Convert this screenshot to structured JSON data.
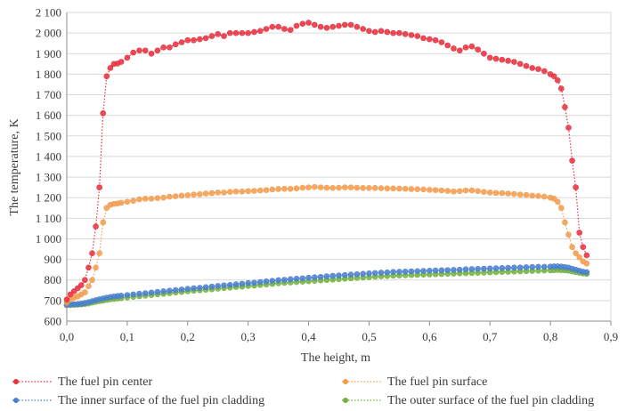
{
  "chart_data": {
    "type": "line",
    "xlabel": "The height, m",
    "ylabel": "The temperature, K",
    "xlim": [
      0,
      0.9
    ],
    "ylim": [
      600,
      2100
    ],
    "x_ticks": [
      "0,0",
      "0,1",
      "0,2",
      "0,3",
      "0,4",
      "0,5",
      "0,6",
      "0,7",
      "0,8",
      "0,9"
    ],
    "y_ticks": [
      "600",
      "700",
      "800",
      "900",
      "1 000",
      "1 100",
      "1 200",
      "1 300",
      "1 400",
      "1 500",
      "1 600",
      "1 700",
      "1 800",
      "1 900",
      "2 000",
      "2 100"
    ],
    "grid": "horizontal",
    "legend_position": "bottom",
    "series": [
      {
        "name": "The fuel pin center",
        "color": "#e8303f",
        "x": [
          0,
          0.006,
          0.012,
          0.018,
          0.024,
          0.03,
          0.036,
          0.042,
          0.048,
          0.054,
          0.06,
          0.066,
          0.072,
          0.078,
          0.084,
          0.09,
          0.1,
          0.11,
          0.12,
          0.13,
          0.14,
          0.15,
          0.16,
          0.17,
          0.18,
          0.19,
          0.2,
          0.21,
          0.22,
          0.23,
          0.24,
          0.25,
          0.26,
          0.27,
          0.28,
          0.29,
          0.3,
          0.31,
          0.32,
          0.33,
          0.34,
          0.35,
          0.36,
          0.37,
          0.38,
          0.39,
          0.4,
          0.41,
          0.42,
          0.43,
          0.44,
          0.45,
          0.46,
          0.47,
          0.48,
          0.49,
          0.5,
          0.51,
          0.52,
          0.53,
          0.54,
          0.55,
          0.56,
          0.57,
          0.58,
          0.59,
          0.6,
          0.61,
          0.62,
          0.63,
          0.64,
          0.65,
          0.66,
          0.67,
          0.68,
          0.69,
          0.7,
          0.71,
          0.72,
          0.73,
          0.74,
          0.75,
          0.76,
          0.77,
          0.78,
          0.79,
          0.8,
          0.806,
          0.812,
          0.818,
          0.824,
          0.83,
          0.836,
          0.842,
          0.848,
          0.854,
          0.86
        ],
        "values": [
          705,
          730,
          745,
          760,
          775,
          800,
          860,
          930,
          1060,
          1250,
          1610,
          1790,
          1830,
          1850,
          1852,
          1860,
          1880,
          1905,
          1915,
          1915,
          1900,
          1915,
          1930,
          1930,
          1945,
          1955,
          1965,
          1965,
          1970,
          1975,
          1985,
          1995,
          1985,
          2000,
          2000,
          2000,
          2000,
          2005,
          2010,
          2020,
          2030,
          2030,
          2020,
          2015,
          2035,
          2045,
          2050,
          2040,
          2030,
          2025,
          2030,
          2035,
          2040,
          2040,
          2030,
          2020,
          2010,
          2005,
          2010,
          2005,
          2000,
          2000,
          1995,
          1990,
          1985,
          1975,
          1970,
          1965,
          1955,
          1940,
          1925,
          1915,
          1930,
          1935,
          1920,
          1900,
          1880,
          1875,
          1870,
          1865,
          1860,
          1850,
          1840,
          1830,
          1825,
          1815,
          1800,
          1790,
          1770,
          1730,
          1640,
          1540,
          1380,
          1250,
          1030,
          960,
          920
        ]
      },
      {
        "name": "The fuel pin surface",
        "color": "#f39c4e",
        "x": [
          0,
          0.006,
          0.012,
          0.018,
          0.024,
          0.03,
          0.036,
          0.042,
          0.048,
          0.054,
          0.06,
          0.066,
          0.072,
          0.078,
          0.084,
          0.09,
          0.1,
          0.11,
          0.12,
          0.13,
          0.14,
          0.15,
          0.16,
          0.17,
          0.18,
          0.19,
          0.2,
          0.21,
          0.22,
          0.23,
          0.24,
          0.25,
          0.26,
          0.27,
          0.28,
          0.29,
          0.3,
          0.31,
          0.32,
          0.33,
          0.34,
          0.35,
          0.36,
          0.37,
          0.38,
          0.39,
          0.4,
          0.41,
          0.42,
          0.43,
          0.44,
          0.45,
          0.46,
          0.47,
          0.48,
          0.49,
          0.5,
          0.51,
          0.52,
          0.53,
          0.54,
          0.55,
          0.56,
          0.57,
          0.58,
          0.59,
          0.6,
          0.61,
          0.62,
          0.63,
          0.64,
          0.65,
          0.66,
          0.67,
          0.68,
          0.69,
          0.7,
          0.71,
          0.72,
          0.73,
          0.74,
          0.75,
          0.76,
          0.77,
          0.78,
          0.79,
          0.8,
          0.806,
          0.812,
          0.818,
          0.824,
          0.83,
          0.836,
          0.842,
          0.848,
          0.854,
          0.86
        ],
        "values": [
          690,
          705,
          715,
          720,
          730,
          740,
          770,
          800,
          860,
          930,
          1080,
          1150,
          1165,
          1170,
          1172,
          1175,
          1180,
          1185,
          1192,
          1195,
          1195,
          1198,
          1200,
          1205,
          1207,
          1210,
          1212,
          1215,
          1217,
          1220,
          1222,
          1225,
          1225,
          1228,
          1230,
          1230,
          1232,
          1233,
          1235,
          1237,
          1240,
          1242,
          1243,
          1243,
          1245,
          1248,
          1250,
          1252,
          1250,
          1248,
          1247,
          1248,
          1250,
          1250,
          1248,
          1247,
          1247,
          1247,
          1246,
          1245,
          1245,
          1244,
          1243,
          1242,
          1241,
          1240,
          1238,
          1237,
          1235,
          1233,
          1230,
          1232,
          1235,
          1235,
          1232,
          1228,
          1225,
          1223,
          1222,
          1220,
          1218,
          1215,
          1213,
          1210,
          1208,
          1205,
          1200,
          1195,
          1180,
          1150,
          1080,
          1020,
          960,
          930,
          910,
          890,
          880
        ]
      },
      {
        "name": "The inner surface of the fuel pin cladding",
        "color": "#4a7fd0",
        "x": [
          0,
          0.006,
          0.012,
          0.018,
          0.024,
          0.03,
          0.036,
          0.042,
          0.048,
          0.054,
          0.06,
          0.066,
          0.072,
          0.078,
          0.084,
          0.09,
          0.1,
          0.11,
          0.12,
          0.13,
          0.14,
          0.15,
          0.16,
          0.17,
          0.18,
          0.19,
          0.2,
          0.21,
          0.22,
          0.23,
          0.24,
          0.25,
          0.26,
          0.27,
          0.28,
          0.29,
          0.3,
          0.31,
          0.32,
          0.33,
          0.34,
          0.35,
          0.36,
          0.37,
          0.38,
          0.39,
          0.4,
          0.41,
          0.42,
          0.43,
          0.44,
          0.45,
          0.46,
          0.47,
          0.48,
          0.49,
          0.5,
          0.51,
          0.52,
          0.53,
          0.54,
          0.55,
          0.56,
          0.57,
          0.58,
          0.59,
          0.6,
          0.61,
          0.62,
          0.63,
          0.64,
          0.65,
          0.66,
          0.67,
          0.68,
          0.69,
          0.7,
          0.71,
          0.72,
          0.73,
          0.74,
          0.75,
          0.76,
          0.77,
          0.78,
          0.79,
          0.8,
          0.806,
          0.812,
          0.818,
          0.824,
          0.83,
          0.836,
          0.842,
          0.848,
          0.854,
          0.86
        ],
        "values": [
          680,
          681,
          682,
          683,
          685,
          688,
          692,
          697,
          702,
          706,
          710,
          714,
          717,
          720,
          722,
          724,
          727,
          730,
          733,
          736,
          739,
          742,
          745,
          748,
          751,
          754,
          757,
          760,
          762,
          765,
          768,
          771,
          774,
          776,
          779,
          782,
          785,
          787,
          790,
          793,
          796,
          799,
          801,
          804,
          806,
          808,
          811,
          813,
          815,
          818,
          820,
          822,
          824,
          826,
          828,
          830,
          832,
          834,
          836,
          837,
          839,
          840,
          841,
          842,
          843,
          844,
          845,
          846,
          847,
          848,
          849,
          850,
          852,
          853,
          854,
          855,
          856,
          857,
          858,
          859,
          860,
          861,
          862,
          863,
          864,
          864,
          865,
          866,
          866,
          865,
          863,
          860,
          855,
          850,
          845,
          840,
          838
        ]
      },
      {
        "name": "The outer surface of the fuel pin cladding",
        "color": "#73b13e",
        "x": [
          0,
          0.006,
          0.012,
          0.018,
          0.024,
          0.03,
          0.036,
          0.042,
          0.048,
          0.054,
          0.06,
          0.066,
          0.072,
          0.078,
          0.084,
          0.09,
          0.1,
          0.11,
          0.12,
          0.13,
          0.14,
          0.15,
          0.16,
          0.17,
          0.18,
          0.19,
          0.2,
          0.21,
          0.22,
          0.23,
          0.24,
          0.25,
          0.26,
          0.27,
          0.28,
          0.29,
          0.3,
          0.31,
          0.32,
          0.33,
          0.34,
          0.35,
          0.36,
          0.37,
          0.38,
          0.39,
          0.4,
          0.41,
          0.42,
          0.43,
          0.44,
          0.45,
          0.46,
          0.47,
          0.48,
          0.49,
          0.5,
          0.51,
          0.52,
          0.53,
          0.54,
          0.55,
          0.56,
          0.57,
          0.58,
          0.59,
          0.6,
          0.61,
          0.62,
          0.63,
          0.64,
          0.65,
          0.66,
          0.67,
          0.68,
          0.69,
          0.7,
          0.71,
          0.72,
          0.73,
          0.74,
          0.75,
          0.76,
          0.77,
          0.78,
          0.79,
          0.8,
          0.806,
          0.812,
          0.818,
          0.824,
          0.83,
          0.836,
          0.842,
          0.848,
          0.854,
          0.86
        ],
        "values": [
          678,
          678,
          679,
          680,
          681,
          683,
          686,
          690,
          694,
          697,
          700,
          703,
          706,
          708,
          710,
          712,
          715,
          718,
          721,
          724,
          727,
          730,
          733,
          736,
          739,
          742,
          745,
          748,
          750,
          753,
          755,
          758,
          761,
          763,
          766,
          768,
          771,
          773,
          776,
          778,
          781,
          784,
          786,
          788,
          790,
          792,
          794,
          796,
          798,
          800,
          802,
          804,
          806,
          808,
          810,
          812,
          814,
          816,
          818,
          819,
          821,
          822,
          823,
          824,
          825,
          826,
          827,
          828,
          829,
          830,
          831,
          832,
          833,
          834,
          835,
          836,
          837,
          838,
          839,
          840,
          841,
          842,
          843,
          844,
          845,
          846,
          847,
          848,
          849,
          848,
          847,
          845,
          842,
          838,
          835,
          832,
          830
        ]
      }
    ]
  }
}
